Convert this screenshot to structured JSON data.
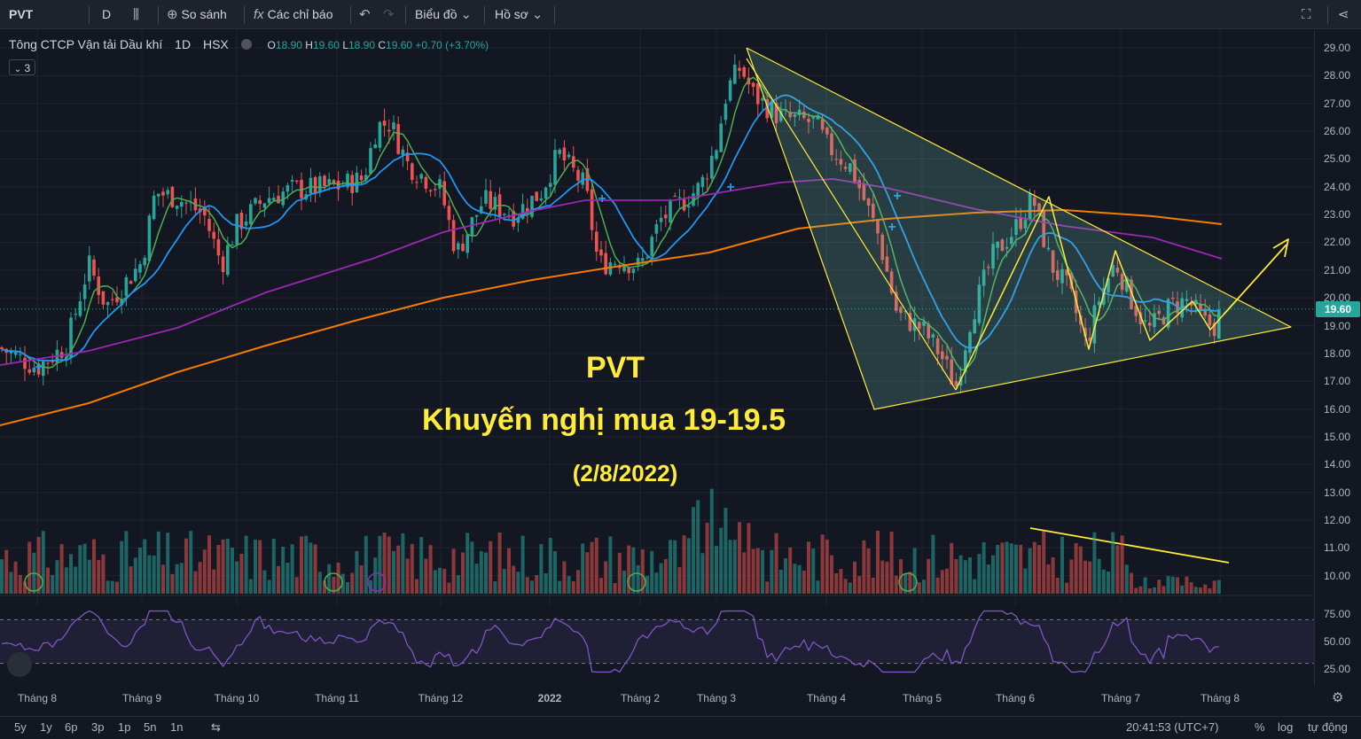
{
  "toolbar": {
    "symbol": "PVT",
    "interval": "D",
    "compare": "So sánh",
    "indicators": "Các chỉ báo",
    "chart_menu": "Biểu đồ",
    "profile_menu": "Hồ sơ"
  },
  "legend": {
    "name": "Tông CTCP Vận tải Dầu khí",
    "interval": "1D",
    "exchange": "HSX",
    "o_label": "O",
    "o": "18.90",
    "h_label": "H",
    "h": "19.60",
    "l_label": "L",
    "l": "18.90",
    "c_label": "C",
    "c": "19.60",
    "chg": "+0.70 (+3.70%)",
    "indicator_count": "3"
  },
  "annotation": {
    "ticker": "PVT",
    "recommendation": "Khuyến nghị mua 19-19.5",
    "date": "(2/8/2022)"
  },
  "price_axis": {
    "ticks": [
      "29.00",
      "28.00",
      "27.00",
      "26.00",
      "25.00",
      "24.00",
      "23.00",
      "22.00",
      "21.00",
      "20.00",
      "19.00",
      "18.00",
      "17.00",
      "16.00",
      "15.00",
      "14.00",
      "13.00",
      "12.00",
      "11.00",
      "10.00"
    ],
    "last_price": "19.60"
  },
  "rsi_axis": {
    "ticks": [
      "75.00",
      "50.00",
      "25.00"
    ]
  },
  "time_axis": {
    "ticks": [
      "Tháng 8",
      "Tháng 9",
      "Tháng 10",
      "Tháng 11",
      "Tháng 12",
      "2022",
      "Tháng 2",
      "Tháng 3",
      "Tháng 4",
      "Tháng 5",
      "Tháng 6",
      "Tháng 7",
      "Tháng 8"
    ]
  },
  "bottom": {
    "ranges": [
      "5y",
      "1y",
      "6p",
      "3p",
      "1p",
      "5n",
      "1n"
    ],
    "clock": "20:41:53 (UTC+7)",
    "pct": "%",
    "log": "log",
    "auto": "tự động"
  },
  "colors": {
    "up": "#26a69a",
    "down": "#ef5350",
    "ma_fast": "#4caf50",
    "ma_mid": "#2196f3",
    "ma_slow": "#9c27b0",
    "ma_long": "#f57c00",
    "drawing": "#ffeb3b",
    "rsi": "#7e57c2"
  },
  "chart_data": {
    "type": "candlestick",
    "symbol": "PVT",
    "timeframe": "1D",
    "ylim": [
      10,
      29.5
    ],
    "last": {
      "open": 18.9,
      "high": 19.6,
      "low": 18.9,
      "close": 19.6,
      "change": 0.7,
      "change_pct": 3.7
    },
    "close_series_approx": [
      [
        "Tháng 8",
        17.5
      ],
      [
        "Tháng 9",
        21.3
      ],
      [
        "Tháng 10",
        22.9
      ],
      [
        "Tháng 11",
        24.0
      ],
      [
        "Tháng 12",
        23.9
      ],
      [
        "2022",
        23.5
      ],
      [
        "Tháng 2",
        21.4
      ],
      [
        "Tháng 3",
        28.3
      ],
      [
        "Tháng 4",
        25.5
      ],
      [
        "Tháng 5",
        17.0
      ],
      [
        "Tháng 6",
        23.5
      ],
      [
        "Tháng 7",
        19.6
      ],
      [
        "Tháng 8",
        19.6
      ]
    ],
    "pattern": "symmetrical triangle",
    "indicators": [
      "MA fast",
      "MA mid",
      "MA slow",
      "MA long",
      "Volume",
      "RSI"
    ],
    "rsi_levels": [
      70,
      30
    ],
    "rsi_range": [
      20,
      80
    ]
  }
}
